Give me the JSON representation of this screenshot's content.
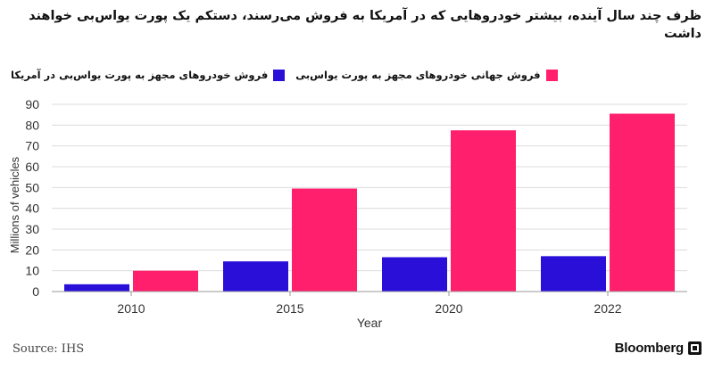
{
  "title": "ظرف چند سال آینده، بیشتر خودروهایی که در آمریکا به فروش می‌رسند، دستکم یک پورت یواس‌بی خواهند داشت",
  "source": "Source: IHS",
  "brand": "Bloomberg",
  "colors": {
    "us": "#2a0fd9",
    "global": "#ff1f6c"
  },
  "chart_data": {
    "type": "bar",
    "categories": [
      "2010",
      "2015",
      "2020",
      "2022"
    ],
    "series": [
      {
        "name": "فروش خودروهای مجهز به پورت یواس‌بی در آمریکا",
        "values": [
          3.5,
          14.5,
          16.5,
          17
        ]
      },
      {
        "name": "فروش جهانی خودروهای مجهز به پورت یواس‌بی",
        "values": [
          10,
          49.5,
          77.5,
          85.5
        ]
      }
    ],
    "xlabel": "Year",
    "ylabel": "Millions of vehicles",
    "ylim": [
      0,
      90
    ],
    "yticks": [
      0,
      10,
      20,
      30,
      40,
      50,
      60,
      70,
      80,
      90
    ],
    "grid": true,
    "legend": "top"
  }
}
